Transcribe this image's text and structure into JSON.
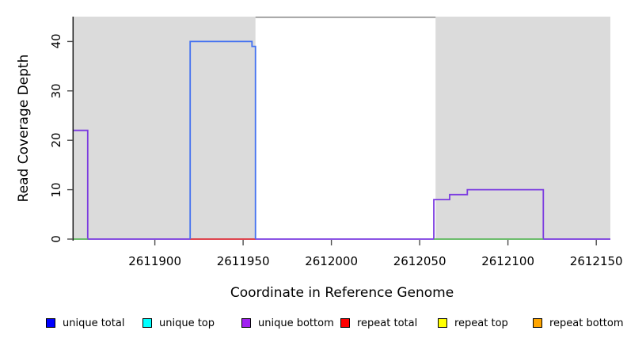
{
  "figure": {
    "kind": "R base-graphics step plot of read coverage along a genome region",
    "background": "#ffffff"
  },
  "chart_data": {
    "type": "line",
    "subtype": "step-coverage",
    "title": "",
    "xlabel": "Coordinate in Reference Genome",
    "ylabel": "Read Coverage Depth",
    "xlim": [
      2611854,
      2612158
    ],
    "ylim": [
      0,
      45
    ],
    "grid": false,
    "x_ticks": [
      2611900,
      2611950,
      2612000,
      2612050,
      2612100,
      2612150
    ],
    "y_ticks": [
      0,
      10,
      20,
      30,
      40
    ],
    "shaded_regions": [
      {
        "from": 2611854,
        "to": 2611957,
        "color": "#dbdbdb"
      },
      {
        "from": 2612059,
        "to": 2612158,
        "color": "#dbdbdb"
      }
    ],
    "top_border_segment": {
      "from": 2611957,
      "to": 2612059,
      "color": "#848484"
    },
    "series": [
      {
        "name": "unique bottom",
        "color": "#7B3BE0",
        "segments": [
          {
            "from": 2611854,
            "to": 2611862,
            "value": 22
          },
          {
            "from": 2611862,
            "to": 2612058,
            "value": 0
          },
          {
            "from": 2612058,
            "to": 2612067,
            "value": 8
          },
          {
            "from": 2612067,
            "to": 2612077,
            "value": 9
          },
          {
            "from": 2612077,
            "to": 2612120,
            "value": 10
          },
          {
            "from": 2612120,
            "to": 2612158,
            "value": 0
          }
        ]
      },
      {
        "name": "repeat total",
        "color": "#E8413A",
        "segments": [
          {
            "from": 2611920,
            "to": 2611957,
            "value": 0
          }
        ]
      },
      {
        "name": "baseline green",
        "color": "#5CB85C",
        "segments": [
          {
            "from": 2611854,
            "to": 2611862,
            "value": 0
          },
          {
            "from": 2612058,
            "to": 2612120,
            "value": 0
          }
        ]
      },
      {
        "name": "unique total",
        "color": "#4472F0",
        "segments": [
          {
            "from": 2611920,
            "to": 2611920,
            "value": 0
          },
          {
            "from": 2611920,
            "to": 2611955,
            "value": 40
          },
          {
            "from": 2611955,
            "to": 2611957,
            "value": 39
          },
          {
            "from": 2611957,
            "to": 2611957,
            "value": 0
          }
        ]
      }
    ]
  },
  "legend": {
    "swatch_border": "#000000",
    "items": [
      {
        "label": "unique total",
        "color": "#0000FF"
      },
      {
        "label": "unique top",
        "color": "#00FFFF"
      },
      {
        "label": "unique bottom",
        "color": "#A020F0"
      },
      {
        "label": "repeat total",
        "color": "#FF0000"
      },
      {
        "label": "repeat top",
        "color": "#FFFF00"
      },
      {
        "label": "repeat bottom",
        "color": "#FFA500"
      }
    ]
  }
}
